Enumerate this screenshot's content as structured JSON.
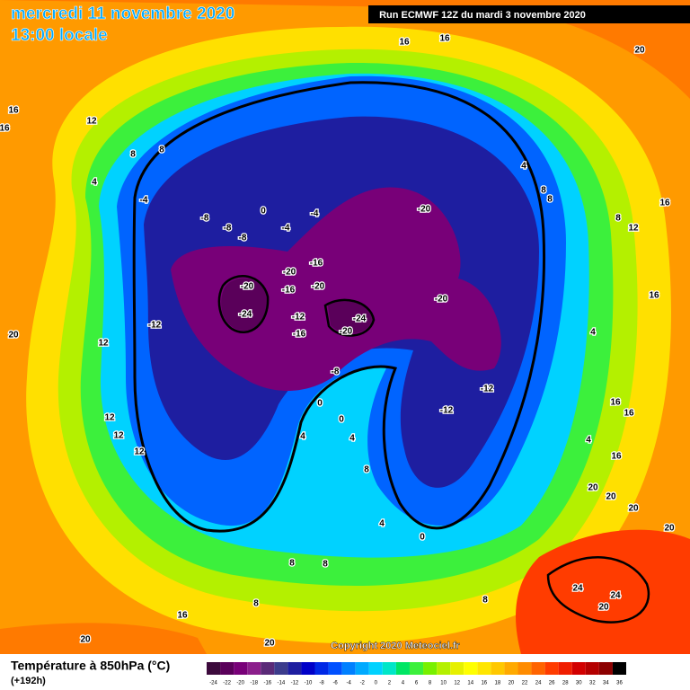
{
  "header": {
    "title": "mercredi 11 novembre 2020",
    "subtitle": "13:00 locale",
    "run": "Run ECMWF 12Z du mardi 3 novembre 2020"
  },
  "map": {
    "contour_labels": [
      16,
      16,
      16,
      16,
      16,
      16,
      16,
      16,
      16,
      16,
      20,
      20,
      20,
      20,
      20,
      20,
      20,
      20,
      12,
      12,
      12,
      12,
      12,
      12,
      8,
      8,
      8,
      8,
      8,
      8,
      8,
      8,
      8,
      8,
      4,
      4,
      4,
      4,
      4,
      4,
      4,
      -4,
      -4,
      -4,
      -8,
      -8,
      -8,
      0,
      0,
      0,
      0,
      -20,
      -20,
      -20,
      -20,
      -20,
      -20,
      -16,
      -16,
      -16,
      -12,
      -12,
      -12,
      -12,
      -24,
      -24,
      -8,
      24,
      24,
      20
    ]
  },
  "footer": {
    "title": "Température à 850hPa (°C)",
    "lead": "(+192h)",
    "copyright": "Copyright 2020 Meteociel.fr"
  },
  "scale": {
    "ticks": [
      -24,
      -22,
      -20,
      -18,
      -16,
      -14,
      -12,
      -10,
      -8,
      -6,
      -4,
      -2,
      0,
      2,
      4,
      6,
      8,
      10,
      12,
      14,
      16,
      18,
      20,
      22,
      24,
      26,
      28,
      30,
      32,
      34,
      36
    ],
    "colors": [
      "#3c0a3c",
      "#5a005a",
      "#780078",
      "#8b1e8b",
      "#5a2a78",
      "#3c3c8c",
      "#1e1ea0",
      "#0000c8",
      "#0028e6",
      "#0050ff",
      "#0080ff",
      "#00aaff",
      "#00d2ff",
      "#00e6c8",
      "#00e664",
      "#3cf03c",
      "#78f000",
      "#b4f000",
      "#e6f000",
      "#ffff00",
      "#ffe600",
      "#ffc800",
      "#ffaa00",
      "#ff8c00",
      "#ff6400",
      "#ff3c00",
      "#f01e00",
      "#d20000",
      "#b40000",
      "#8c0000",
      "#000000"
    ]
  }
}
